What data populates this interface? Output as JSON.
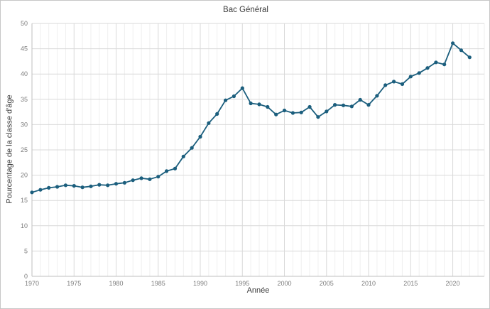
{
  "chart_data": {
    "type": "line",
    "title": "Bac Général",
    "xlabel": "Année",
    "ylabel": "Pourcentage de la classe d'âge",
    "xlim": [
      1970,
      2023.75
    ],
    "ylim": [
      0,
      50
    ],
    "xticks": [
      1970,
      1975,
      1980,
      1985,
      1990,
      1995,
      2000,
      2005,
      2010,
      2015,
      2020
    ],
    "yticks": [
      0,
      5,
      10,
      15,
      20,
      25,
      30,
      35,
      40,
      45,
      50
    ],
    "grid": {
      "horizontal_major": true,
      "vertical_major": true,
      "vertical_minor_every_year": true
    },
    "legend": "none",
    "series": [
      {
        "name": "Bac Général",
        "color": "#1b5e7d",
        "marker": "circle",
        "x": [
          1970,
          1971,
          1972,
          1973,
          1974,
          1975,
          1976,
          1977,
          1978,
          1979,
          1980,
          1981,
          1982,
          1983,
          1984,
          1985,
          1986,
          1987,
          1988,
          1989,
          1990,
          1991,
          1992,
          1993,
          1994,
          1995,
          1996,
          1997,
          1998,
          1999,
          2000,
          2001,
          2002,
          2003,
          2004,
          2005,
          2006,
          2007,
          2008,
          2009,
          2010,
          2011,
          2012,
          2013,
          2014,
          2015,
          2016,
          2017,
          2018,
          2019,
          2020,
          2021,
          2022
        ],
        "values": [
          16.6,
          17.1,
          17.5,
          17.7,
          18.0,
          17.9,
          17.6,
          17.8,
          18.1,
          18.0,
          18.3,
          18.5,
          19.0,
          19.4,
          19.2,
          19.7,
          20.8,
          21.3,
          23.7,
          25.4,
          27.6,
          30.3,
          32.1,
          34.8,
          35.6,
          37.2,
          34.2,
          34.0,
          33.5,
          32.0,
          32.8,
          32.3,
          32.4,
          33.5,
          31.5,
          32.6,
          33.9,
          33.8,
          33.6,
          34.9,
          33.9,
          35.7,
          37.8,
          38.5,
          38.0,
          39.5,
          40.2,
          41.2,
          42.3,
          41.9,
          46.1,
          44.7,
          43.3
        ]
      }
    ]
  },
  "style": {
    "background": "#ffffff",
    "frame_border": "#c6c6c6",
    "series_color": "#1b5e7d",
    "grid_major": "#d9d9d9",
    "grid_minor": "#efefef",
    "axis_line": "#bfbfbf",
    "tick_label_color": "#7d7d7d",
    "title_color": "#3c3c3c"
  }
}
